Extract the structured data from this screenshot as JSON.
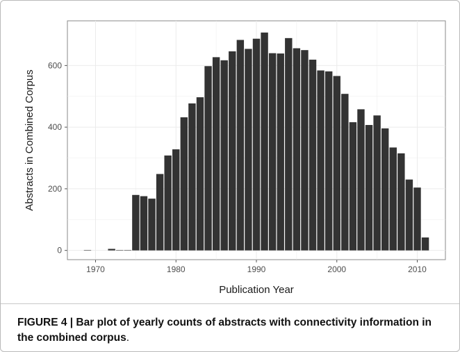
{
  "chart_data": {
    "type": "bar",
    "xlabel": "Publication Year",
    "ylabel": "Abstracts in Combined Corpus",
    "xlim": [
      1966.5,
      2013.5
    ],
    "ylim": [
      -30,
      745
    ],
    "x_ticks": [
      1970,
      1980,
      1990,
      2000,
      2010
    ],
    "y_ticks": [
      0,
      200,
      400,
      600
    ],
    "grid": true,
    "legend": "none",
    "colors": {
      "bar": "#333333",
      "panel": "#ffffff",
      "grid": "#ebebeb"
    },
    "x": [
      1969,
      1972,
      1973,
      1974,
      1975,
      1976,
      1977,
      1978,
      1979,
      1980,
      1981,
      1982,
      1983,
      1984,
      1985,
      1986,
      1987,
      1988,
      1989,
      1990,
      1991,
      1992,
      1993,
      1994,
      1995,
      1996,
      1997,
      1998,
      1999,
      2000,
      2001,
      2002,
      2003,
      2004,
      2005,
      2006,
      2007,
      2008,
      2009,
      2010,
      2011
    ],
    "values": [
      1,
      5,
      1,
      1,
      180,
      176,
      168,
      248,
      308,
      328,
      432,
      477,
      497,
      598,
      627,
      617,
      646,
      683,
      654,
      687,
      707,
      640,
      639,
      689,
      656,
      650,
      619,
      584,
      581,
      566,
      508,
      416,
      458,
      407,
      438,
      396,
      334,
      315,
      230,
      204,
      42
    ]
  },
  "caption": {
    "label": "FIGURE 4 | Bar plot of yearly counts of abstracts with connectivity information in the combined corpus",
    "tail": "."
  }
}
